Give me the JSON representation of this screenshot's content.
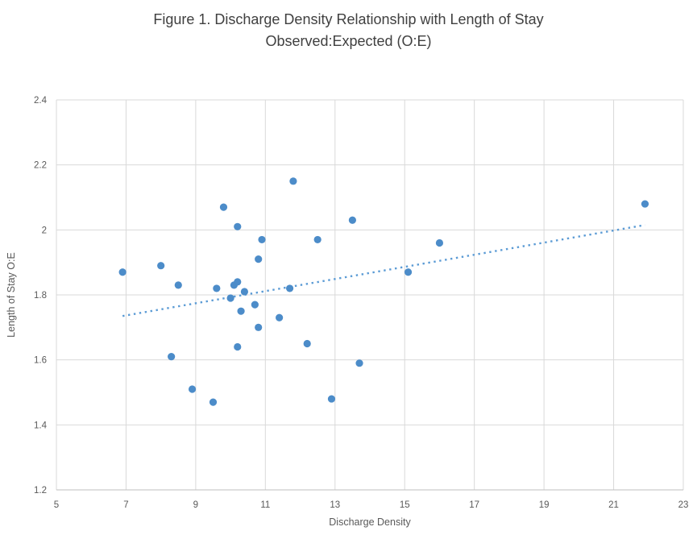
{
  "figure": {
    "title_line1": "Figure 1. Discharge Density Relationship with Length of Stay",
    "title_line2": "Observed:Expected (O:E)"
  },
  "chart_data": {
    "type": "scatter",
    "title": "Figure 1. Discharge Density Relationship with Length of Stay Observed:Expected (O:E)",
    "xlabel": "Discharge Density",
    "ylabel": "Length of Stay O:E",
    "xlim": [
      5,
      23
    ],
    "ylim": [
      1.2,
      2.4
    ],
    "x_ticks": [
      5,
      7,
      9,
      11,
      13,
      15,
      17,
      19,
      21,
      23
    ],
    "x_tick_labels": [
      "5",
      "7",
      "9",
      "11",
      "13",
      "15",
      "17",
      "19",
      "21",
      "23"
    ],
    "y_ticks": [
      1.2,
      1.4,
      1.6,
      1.8,
      2.0,
      2.2,
      2.4
    ],
    "y_tick_labels": [
      "1.2",
      "1.4",
      "1.6",
      "1.8",
      "2",
      "2.2",
      "2.4"
    ],
    "grid": true,
    "legend": "none",
    "series": [
      {
        "name": "Length of Stay O:E vs Discharge Density",
        "points": [
          [
            6.9,
            1.87
          ],
          [
            8.0,
            1.89
          ],
          [
            8.3,
            1.61
          ],
          [
            8.5,
            1.83
          ],
          [
            8.9,
            1.51
          ],
          [
            9.5,
            1.47
          ],
          [
            9.6,
            1.82
          ],
          [
            9.8,
            2.07
          ],
          [
            10.0,
            1.79
          ],
          [
            10.1,
            1.83
          ],
          [
            10.2,
            1.84
          ],
          [
            10.2,
            2.01
          ],
          [
            10.2,
            1.64
          ],
          [
            10.3,
            1.75
          ],
          [
            10.4,
            1.81
          ],
          [
            10.7,
            1.77
          ],
          [
            10.8,
            1.91
          ],
          [
            10.8,
            1.7
          ],
          [
            10.9,
            1.97
          ],
          [
            11.4,
            1.73
          ],
          [
            11.7,
            1.82
          ],
          [
            11.8,
            2.15
          ],
          [
            12.2,
            1.65
          ],
          [
            12.5,
            1.97
          ],
          [
            12.9,
            1.48
          ],
          [
            13.5,
            2.03
          ],
          [
            13.7,
            1.59
          ],
          [
            15.1,
            1.87
          ],
          [
            16.0,
            1.96
          ],
          [
            21.9,
            2.08
          ]
        ]
      }
    ],
    "trendline": {
      "style": "dotted",
      "x1": 6.9,
      "y1": 1.735,
      "x2": 21.9,
      "y2": 2.015
    },
    "colors": {
      "marker": "#4C8CC9",
      "trendline": "#5B9BD5",
      "gridline": "#D9D9D9",
      "axis_line": "#BFBFBF",
      "title_text": "#404040",
      "tick_text": "#595959"
    }
  }
}
